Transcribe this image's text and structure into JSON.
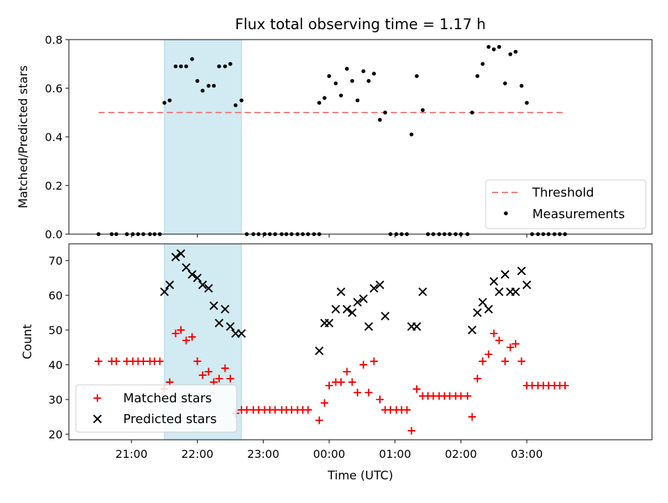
{
  "title": "Flux total observing time = 1.17 h",
  "colors": {
    "threshold": "#f08080",
    "matched": "#ff0000",
    "predicted": "#000000",
    "measurement": "#000000",
    "shade": "#add8e6"
  },
  "chart_data": [
    {
      "type": "scatter",
      "ylabel": "Matched/Predicted stars",
      "ylim": [
        0,
        0.8
      ],
      "yticks": [
        "0.0",
        "0.2",
        "0.4",
        "0.6",
        "0.8"
      ],
      "xlim_hours": [
        20.05,
        28.9
      ],
      "shaded_span_hours": [
        21.5,
        22.67
      ],
      "threshold": {
        "name": "Threshold",
        "value": 0.5,
        "x_range_hours": [
          20.5,
          27.55
        ]
      },
      "legend": {
        "placement": "lower-right",
        "entries": [
          "Threshold",
          "Measurements"
        ]
      },
      "series": [
        {
          "name": "Measurements",
          "points": [
            [
              20.5,
              0
            ],
            [
              20.7,
              0
            ],
            [
              20.77,
              0
            ],
            [
              20.93,
              0
            ],
            [
              21.02,
              0
            ],
            [
              21.1,
              0
            ],
            [
              21.18,
              0
            ],
            [
              21.28,
              0
            ],
            [
              21.35,
              0
            ],
            [
              21.43,
              0
            ],
            [
              21.5,
              0.54
            ],
            [
              21.58,
              0.55
            ],
            [
              21.67,
              0.69
            ],
            [
              21.75,
              0.69
            ],
            [
              21.83,
              0.69
            ],
            [
              21.92,
              0.72
            ],
            [
              22.0,
              0.63
            ],
            [
              22.08,
              0.59
            ],
            [
              22.17,
              0.61
            ],
            [
              22.25,
              0.61
            ],
            [
              22.33,
              0.69
            ],
            [
              22.42,
              0.69
            ],
            [
              22.5,
              0.7
            ],
            [
              22.58,
              0.53
            ],
            [
              22.67,
              0.55
            ],
            [
              22.75,
              0
            ],
            [
              22.85,
              0
            ],
            [
              22.93,
              0
            ],
            [
              23.02,
              0
            ],
            [
              23.1,
              0
            ],
            [
              23.18,
              0
            ],
            [
              23.28,
              0
            ],
            [
              23.35,
              0
            ],
            [
              23.43,
              0
            ],
            [
              23.52,
              0
            ],
            [
              23.6,
              0
            ],
            [
              23.68,
              0
            ],
            [
              23.77,
              0
            ],
            [
              23.85,
              0
            ],
            [
              23.85,
              0.54
            ],
            [
              23.93,
              0.56
            ],
            [
              24.0,
              0.65
            ],
            [
              24.1,
              0.62
            ],
            [
              24.18,
              0.57
            ],
            [
              24.27,
              0.68
            ],
            [
              24.35,
              0.63
            ],
            [
              24.43,
              0.55
            ],
            [
              24.52,
              0.67
            ],
            [
              24.6,
              0.63
            ],
            [
              24.68,
              0.66
            ],
            [
              24.77,
              0.47
            ],
            [
              24.85,
              0.5
            ],
            [
              24.93,
              0
            ],
            [
              25.02,
              0
            ],
            [
              25.1,
              0
            ],
            [
              25.18,
              0
            ],
            [
              25.25,
              0.41
            ],
            [
              25.33,
              0.65
            ],
            [
              25.42,
              0.51
            ],
            [
              25.5,
              0
            ],
            [
              25.58,
              0
            ],
            [
              25.67,
              0
            ],
            [
              25.75,
              0
            ],
            [
              25.83,
              0
            ],
            [
              25.92,
              0
            ],
            [
              26.0,
              0
            ],
            [
              26.1,
              0
            ],
            [
              26.17,
              0.5
            ],
            [
              26.25,
              0.65
            ],
            [
              26.33,
              0.7
            ],
            [
              26.42,
              0.77
            ],
            [
              26.5,
              0.76
            ],
            [
              26.58,
              0.77
            ],
            [
              26.67,
              0.62
            ],
            [
              26.75,
              0.74
            ],
            [
              26.83,
              0.75
            ],
            [
              26.92,
              0.61
            ],
            [
              27.0,
              0.54
            ],
            [
              27.08,
              0
            ],
            [
              27.17,
              0
            ],
            [
              27.25,
              0
            ],
            [
              27.33,
              0
            ],
            [
              27.42,
              0
            ],
            [
              27.5,
              0
            ],
            [
              27.58,
              0
            ]
          ]
        }
      ]
    },
    {
      "type": "scatter",
      "ylabel": "Count",
      "xlabel": "Time (UTC)",
      "ylim": [
        18.4,
        74.8
      ],
      "yticks": [
        "20",
        "30",
        "40",
        "50",
        "60",
        "70"
      ],
      "xlim_hours": [
        20.05,
        28.9
      ],
      "xticks": [
        "21:00",
        "22:00",
        "23:00",
        "00:00",
        "01:00",
        "02:00",
        "03:00"
      ],
      "shaded_span_hours": [
        21.5,
        22.67
      ],
      "legend": {
        "placement": "lower-left",
        "entries": [
          "Matched stars",
          "Predicted stars"
        ]
      },
      "series": [
        {
          "name": "Matched stars",
          "marker": "plus",
          "points": [
            [
              20.5,
              41
            ],
            [
              20.7,
              41
            ],
            [
              20.77,
              41
            ],
            [
              20.93,
              41
            ],
            [
              21.02,
              41
            ],
            [
              21.1,
              41
            ],
            [
              21.18,
              41
            ],
            [
              21.28,
              41
            ],
            [
              21.35,
              41
            ],
            [
              21.43,
              41
            ],
            [
              21.5,
              33
            ],
            [
              21.58,
              35
            ],
            [
              21.67,
              49
            ],
            [
              21.75,
              50
            ],
            [
              21.83,
              47
            ],
            [
              21.92,
              48
            ],
            [
              22.0,
              41
            ],
            [
              22.08,
              37
            ],
            [
              22.17,
              38
            ],
            [
              22.25,
              35
            ],
            [
              22.33,
              36
            ],
            [
              22.42,
              39
            ],
            [
              22.5,
              36
            ],
            [
              22.58,
              26
            ],
            [
              22.67,
              27
            ],
            [
              22.75,
              27
            ],
            [
              22.85,
              27
            ],
            [
              22.93,
              27
            ],
            [
              23.02,
              27
            ],
            [
              23.1,
              27
            ],
            [
              23.18,
              27
            ],
            [
              23.28,
              27
            ],
            [
              23.35,
              27
            ],
            [
              23.43,
              27
            ],
            [
              23.52,
              27
            ],
            [
              23.6,
              27
            ],
            [
              23.68,
              27
            ],
            [
              23.85,
              24
            ],
            [
              23.93,
              29
            ],
            [
              24.0,
              34
            ],
            [
              24.1,
              35
            ],
            [
              24.18,
              35
            ],
            [
              24.27,
              38
            ],
            [
              24.35,
              35
            ],
            [
              24.43,
              32
            ],
            [
              24.52,
              40
            ],
            [
              24.6,
              32
            ],
            [
              24.68,
              41
            ],
            [
              24.77,
              30
            ],
            [
              24.85,
              27
            ],
            [
              24.93,
              27
            ],
            [
              25.02,
              27
            ],
            [
              25.1,
              27
            ],
            [
              25.18,
              27
            ],
            [
              25.25,
              21
            ],
            [
              25.33,
              33
            ],
            [
              25.42,
              31
            ],
            [
              25.5,
              31
            ],
            [
              25.58,
              31
            ],
            [
              25.67,
              31
            ],
            [
              25.75,
              31
            ],
            [
              25.83,
              31
            ],
            [
              25.92,
              31
            ],
            [
              26.0,
              31
            ],
            [
              26.1,
              31
            ],
            [
              26.17,
              25
            ],
            [
              26.25,
              36
            ],
            [
              26.33,
              41
            ],
            [
              26.42,
              43
            ],
            [
              26.5,
              49
            ],
            [
              26.58,
              47
            ],
            [
              26.67,
              41
            ],
            [
              26.75,
              45
            ],
            [
              26.83,
              46
            ],
            [
              26.92,
              41
            ],
            [
              27.0,
              34
            ],
            [
              27.08,
              34
            ],
            [
              27.17,
              34
            ],
            [
              27.25,
              34
            ],
            [
              27.33,
              34
            ],
            [
              27.42,
              34
            ],
            [
              27.5,
              34
            ],
            [
              27.58,
              34
            ]
          ]
        },
        {
          "name": "Predicted stars",
          "marker": "x",
          "points": [
            [
              21.5,
              61
            ],
            [
              21.58,
              63
            ],
            [
              21.67,
              71
            ],
            [
              21.75,
              72
            ],
            [
              21.83,
              68
            ],
            [
              21.92,
              66
            ],
            [
              22.0,
              65
            ],
            [
              22.08,
              63
            ],
            [
              22.17,
              62
            ],
            [
              22.25,
              57
            ],
            [
              22.33,
              52
            ],
            [
              22.42,
              56
            ],
            [
              22.5,
              51
            ],
            [
              22.58,
              49
            ],
            [
              22.67,
              49
            ],
            [
              23.85,
              44
            ],
            [
              23.93,
              52
            ],
            [
              24.0,
              52
            ],
            [
              24.1,
              56
            ],
            [
              24.18,
              61
            ],
            [
              24.27,
              56
            ],
            [
              24.35,
              55
            ],
            [
              24.43,
              58
            ],
            [
              24.52,
              59
            ],
            [
              24.6,
              51
            ],
            [
              24.68,
              62
            ],
            [
              24.77,
              63
            ],
            [
              24.85,
              54
            ],
            [
              25.25,
              51
            ],
            [
              25.33,
              51
            ],
            [
              25.42,
              61
            ],
            [
              26.17,
              50
            ],
            [
              26.25,
              55
            ],
            [
              26.33,
              58
            ],
            [
              26.42,
              56
            ],
            [
              26.5,
              64
            ],
            [
              26.58,
              61
            ],
            [
              26.67,
              66
            ],
            [
              26.75,
              61
            ],
            [
              26.83,
              61
            ],
            [
              26.92,
              67
            ],
            [
              27.0,
              63
            ]
          ]
        }
      ]
    }
  ]
}
